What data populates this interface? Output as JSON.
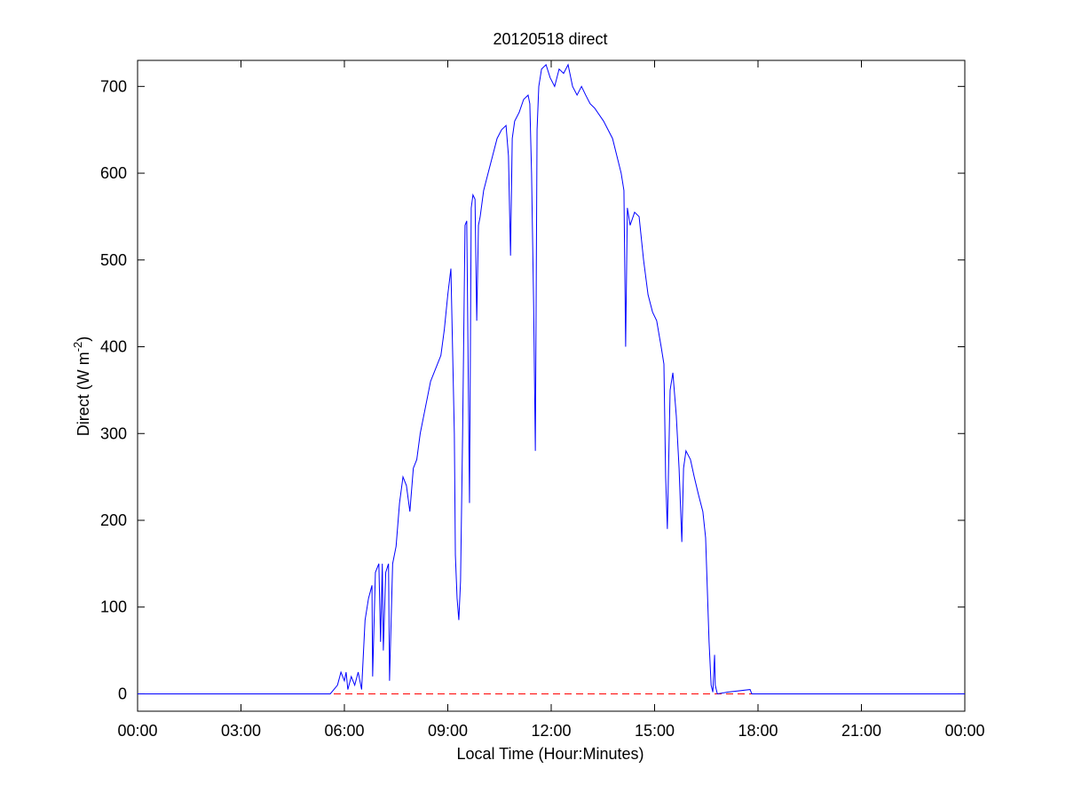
{
  "chart_data": {
    "type": "line",
    "title": "20120518 direct",
    "x_label": "Local Time (Hour:Minutes)",
    "y_label": [
      "Direct (W m",
      "-2",
      ")"
    ],
    "x": [
      0,
      5.59,
      5.8,
      5.9,
      6.0,
      6.05,
      6.1,
      6.2,
      6.3,
      6.4,
      6.5,
      6.55,
      6.6,
      6.7,
      6.8,
      6.82,
      6.9,
      7.0,
      7.05,
      7.1,
      7.13,
      7.2,
      7.28,
      7.31,
      7.4,
      7.5,
      7.6,
      7.7,
      7.8,
      7.9,
      8.0,
      8.1,
      8.2,
      8.3,
      8.4,
      8.5,
      8.7,
      8.8,
      8.9,
      9.0,
      9.09,
      9.19,
      9.22,
      9.27,
      9.32,
      9.37,
      9.43,
      9.5,
      9.55,
      9.61,
      9.63,
      9.68,
      9.73,
      9.79,
      9.84,
      9.89,
      9.94,
      10.04,
      10.17,
      10.3,
      10.43,
      10.56,
      10.69,
      10.76,
      10.82,
      10.87,
      10.94,
      11.07,
      11.2,
      11.33,
      11.38,
      11.43,
      11.49,
      11.54,
      11.59,
      11.64,
      11.72,
      11.85,
      11.97,
      12.1,
      12.23,
      12.36,
      12.49,
      12.62,
      12.75,
      12.88,
      13.0,
      13.13,
      13.26,
      13.52,
      13.78,
      14.03,
      14.11,
      14.16,
      14.21,
      14.29,
      14.42,
      14.55,
      14.68,
      14.81,
      14.94,
      15.06,
      15.19,
      15.27,
      15.32,
      15.37,
      15.45,
      15.53,
      15.63,
      15.71,
      15.79,
      15.84,
      15.91,
      16.04,
      16.15,
      16.27,
      16.4,
      16.48,
      16.53,
      16.58,
      16.64,
      16.69,
      16.74,
      16.76,
      16.82,
      17.12,
      17.77,
      17.82,
      24
    ],
    "series": [
      {
        "color": "#0000ff",
        "values": [
          0,
          0,
          10,
          25,
          15,
          25,
          5,
          20,
          10,
          25,
          5,
          45,
          85,
          110,
          125,
          20,
          140,
          150,
          60,
          150,
          50,
          140,
          150,
          15,
          150,
          170,
          220,
          250,
          240,
          210,
          260,
          270,
          300,
          320,
          340,
          360,
          380,
          390,
          420,
          460,
          490,
          300,
          160,
          110,
          85,
          130,
          300,
          540,
          545,
          300,
          220,
          560,
          575,
          570,
          430,
          540,
          550,
          580,
          600,
          620,
          640,
          650,
          655,
          620,
          505,
          640,
          660,
          670,
          685,
          690,
          680,
          600,
          450,
          280,
          650,
          700,
          720,
          725,
          710,
          700,
          720,
          715,
          725,
          700,
          690,
          700,
          690,
          680,
          675,
          660,
          640,
          600,
          580,
          400,
          560,
          540,
          555,
          550,
          500,
          460,
          440,
          430,
          400,
          380,
          250,
          190,
          350,
          370,
          320,
          260,
          175,
          260,
          280,
          270,
          250,
          230,
          210,
          180,
          120,
          60,
          10,
          2,
          45,
          10,
          0,
          2,
          5,
          0,
          0
        ]
      }
    ],
    "reference_line": {
      "value": 0,
      "color": "#ff0000",
      "style": "dashed"
    },
    "xlim": [
      0,
      24
    ],
    "xticks": [
      {
        "value": 0,
        "label": "00:00"
      },
      {
        "value": 3,
        "label": "03:00"
      },
      {
        "value": 6,
        "label": "06:00"
      },
      {
        "value": 9,
        "label": "09:00"
      },
      {
        "value": 12,
        "label": "12:00"
      },
      {
        "value": 15,
        "label": "15:00"
      },
      {
        "value": 18,
        "label": "18:00"
      },
      {
        "value": 21,
        "label": "21:00"
      },
      {
        "value": 24,
        "label": "00:00"
      }
    ],
    "ylim": [
      -20,
      730
    ],
    "yticks": [
      0,
      100,
      200,
      300,
      400,
      500,
      600,
      700
    ],
    "grid": false
  }
}
